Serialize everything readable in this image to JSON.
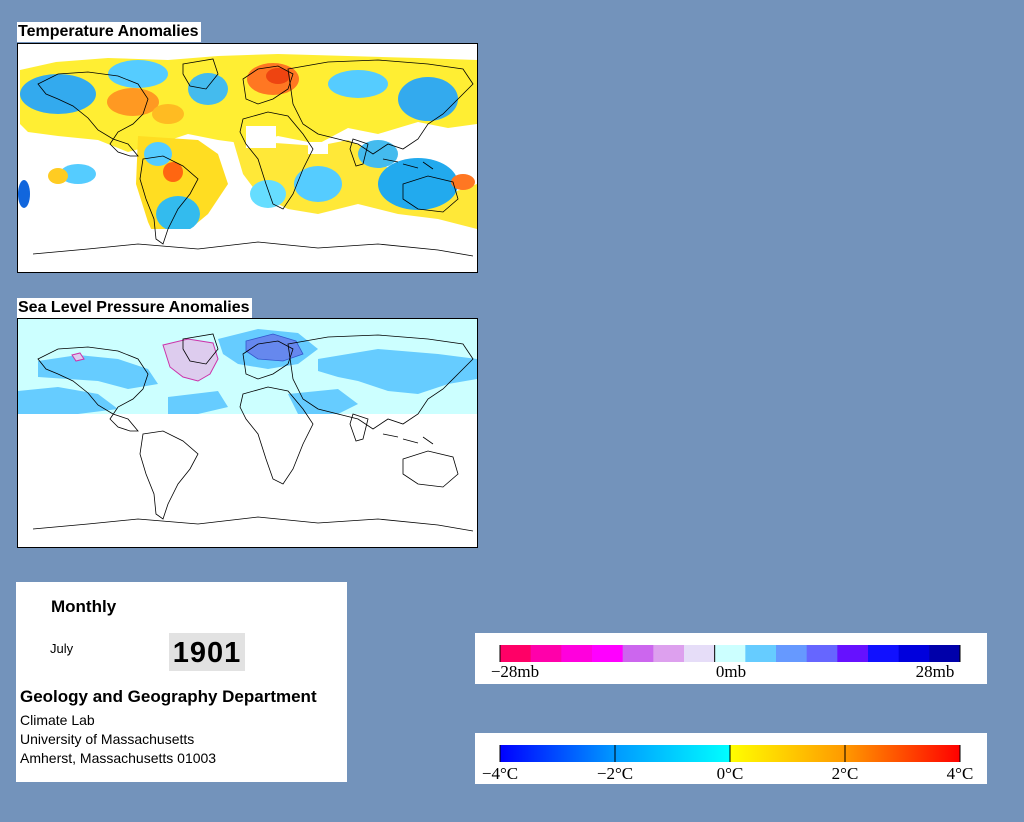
{
  "maps": {
    "temperature": {
      "title": "Temperature Anomalies"
    },
    "pressure": {
      "title": "Sea Level Pressure Anomalies"
    }
  },
  "info": {
    "period": "Monthly",
    "month": "July",
    "year": "1901",
    "department": "Geology and Geography Department",
    "address_lines": [
      "Climate Lab",
      "University of Massachusetts",
      "Amherst, Massachusetts 01003"
    ]
  },
  "legends": {
    "pressure": {
      "labels": [
        "−28mb",
        "0mb",
        "28mb"
      ],
      "colors": [
        "#ff0066",
        "#ff00aa",
        "#ff00dd",
        "#ff00ff",
        "#cc66ee",
        "#dda0ee",
        "#e6ddf8",
        "#ccffff",
        "#66ccff",
        "#6699ff",
        "#6666ff",
        "#6611ff",
        "#1111ff",
        "#0000dd",
        "#0000aa"
      ]
    },
    "temperature": {
      "labels": [
        "−4°C",
        "−2°C",
        "0°C",
        "2°C",
        "4°C"
      ],
      "colors": [
        "#0000ff",
        "#0099ff",
        "#00ffff",
        "#ffff00",
        "#ff9900",
        "#ff0000"
      ]
    }
  },
  "colors": {
    "background": "#7393bb",
    "coastline": "#000000",
    "no_data": "#ffffff"
  }
}
